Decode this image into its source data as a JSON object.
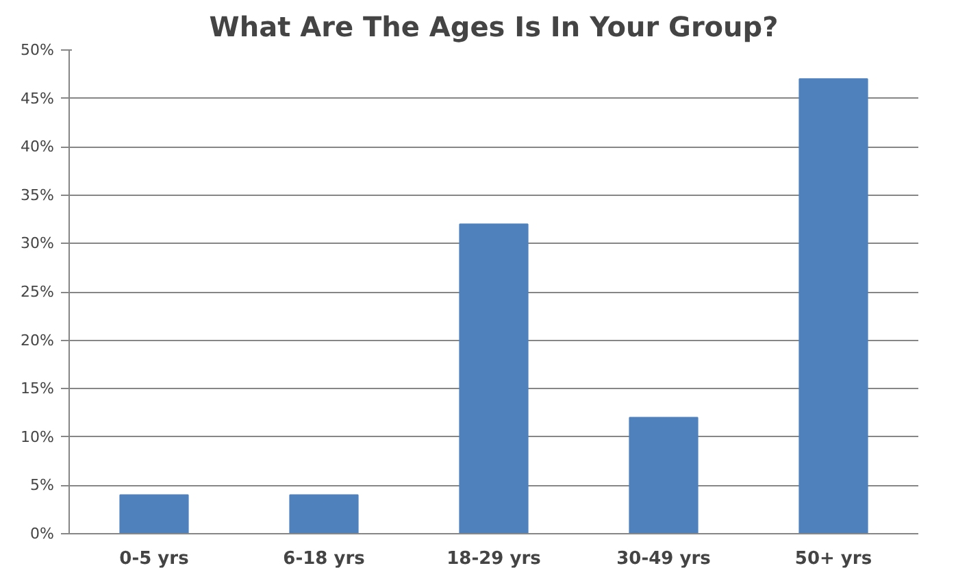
{
  "chart_data": {
    "type": "bar",
    "title": "What Are The Ages Is In Your Group?",
    "categories": [
      "0-5 yrs",
      "6-18 yrs",
      "18-29 yrs",
      "30-49 yrs",
      "50+ yrs"
    ],
    "values": [
      4,
      4,
      32,
      12,
      47
    ],
    "color": "#4f81bd",
    "ylim": [
      0,
      50
    ],
    "yticks": [
      {
        "value": 0,
        "label": "0%"
      },
      {
        "value": 5,
        "label": "5%"
      },
      {
        "value": 10,
        "label": "10%"
      },
      {
        "value": 15,
        "label": "15%"
      },
      {
        "value": 20,
        "label": "20%"
      },
      {
        "value": 25,
        "label": "25%"
      },
      {
        "value": 30,
        "label": "30%"
      },
      {
        "value": 35,
        "label": "35%"
      },
      {
        "value": 40,
        "label": "40%"
      },
      {
        "value": 45,
        "label": "45%"
      },
      {
        "value": 50,
        "label": "50%"
      }
    ],
    "grid": "y"
  }
}
